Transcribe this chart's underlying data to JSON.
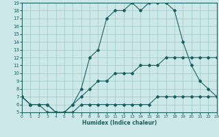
{
  "xlabel": "Humidex (Indice chaleur)",
  "bg_color": "#cce8e8",
  "line_color": "#1a6060",
  "grid_color": "#a0c8c8",
  "xlim": [
    0,
    23
  ],
  "ylim": [
    5,
    19
  ],
  "line1_x": [
    0,
    1,
    2,
    3,
    4,
    5,
    6,
    7,
    8,
    9,
    10,
    11,
    12,
    13,
    14,
    15,
    16,
    17,
    18,
    19,
    20,
    21,
    22,
    23
  ],
  "line1_y": [
    7,
    6,
    6,
    5,
    5,
    5,
    6,
    8,
    12,
    13,
    17,
    18,
    18,
    19,
    18,
    19,
    19,
    19,
    18,
    14,
    11,
    9,
    8,
    7
  ],
  "line2_x": [
    0,
    1,
    2,
    3,
    4,
    5,
    6,
    7,
    8,
    9,
    10,
    11,
    12,
    13,
    14,
    15,
    16,
    17,
    18,
    19,
    20,
    21,
    22,
    23
  ],
  "line2_y": [
    7,
    6,
    6,
    6,
    5,
    5,
    6,
    7,
    8,
    9,
    9,
    10,
    10,
    10,
    11,
    11,
    11,
    12,
    12,
    12,
    12,
    12,
    12,
    12
  ],
  "line3_x": [
    0,
    1,
    2,
    3,
    4,
    5,
    6,
    7,
    8,
    9,
    10,
    11,
    12,
    13,
    14,
    15,
    16,
    17,
    18,
    19,
    20,
    21,
    22,
    23
  ],
  "line3_y": [
    7,
    6,
    6,
    6,
    5,
    5,
    5,
    6,
    6,
    6,
    6,
    6,
    6,
    6,
    6,
    6,
    7,
    7,
    7,
    7,
    7,
    7,
    7,
    7
  ]
}
